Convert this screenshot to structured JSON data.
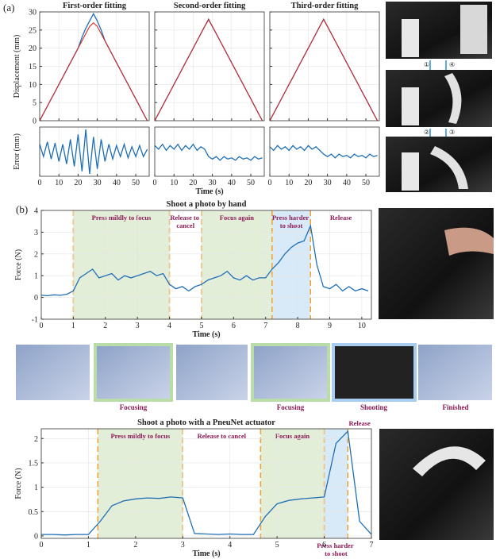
{
  "panel_labels": [
    "(a)",
    "(b)"
  ],
  "photo_steps": [
    "①",
    "④",
    "②",
    "③"
  ],
  "screen_captions": [
    "Focusing",
    "Focusing",
    "Shooting",
    "Finished"
  ],
  "chart_data": [
    {
      "type": "line",
      "title": "First-order fitting",
      "ylabel": "Displacement (mm)",
      "grid": true,
      "x": [
        0,
        2,
        4,
        6,
        8,
        10,
        12,
        14,
        16,
        18,
        20,
        22,
        24,
        26,
        28,
        30,
        32,
        34,
        36,
        38,
        40,
        42,
        44,
        46,
        48,
        50,
        52,
        54,
        56
      ],
      "series": [
        {
          "color": "#1f6fb5",
          "values": [
            0,
            2,
            4,
            6,
            8,
            10,
            12,
            14,
            16,
            18,
            20,
            23,
            25.5,
            27.5,
            29.5,
            27.5,
            25,
            22,
            20,
            18,
            16,
            14,
            12,
            10,
            8,
            6,
            4,
            2,
            0
          ]
        },
        {
          "color": "#d62728",
          "values": [
            0,
            2,
            4,
            6,
            8,
            10,
            12,
            14,
            16,
            18,
            20,
            22,
            24,
            26,
            27,
            26,
            24,
            22,
            20,
            18,
            16,
            14,
            12,
            10,
            8,
            6,
            4,
            2,
            0
          ]
        }
      ],
      "xlim": [
        0,
        57
      ],
      "ylim": [
        0,
        30
      ],
      "xticks": [
        0,
        10,
        20,
        30,
        40,
        50
      ],
      "yticks": [
        0,
        5,
        10,
        15,
        20,
        25,
        30
      ]
    },
    {
      "type": "line",
      "title": "Second-order fitting",
      "grid": true,
      "x": [
        0,
        2,
        4,
        6,
        8,
        10,
        12,
        14,
        16,
        18,
        20,
        22,
        24,
        26,
        28,
        30,
        32,
        34,
        36,
        38,
        40,
        42,
        44,
        46,
        48,
        50,
        52,
        54,
        56
      ],
      "series": [
        {
          "color": "#1f6fb5",
          "values": [
            0,
            2,
            4,
            6,
            8,
            10,
            12,
            14,
            16,
            18,
            20,
            22,
            24,
            26,
            28,
            26,
            24,
            22,
            20,
            18,
            16,
            14,
            12,
            10,
            8,
            6,
            4,
            2,
            0
          ]
        },
        {
          "color": "#d62728",
          "values": [
            0,
            2,
            4,
            6,
            8,
            10,
            12,
            14,
            16,
            18,
            20,
            22,
            24,
            26,
            27.8,
            26,
            24,
            22,
            20,
            18,
            16,
            14,
            12,
            10,
            8,
            6,
            4,
            2,
            0
          ]
        }
      ],
      "xlim": [
        0,
        57
      ],
      "ylim": [
        0,
        30
      ],
      "xticks": [
        0,
        10,
        20,
        30,
        40,
        50
      ],
      "yticks": [
        0,
        5,
        10,
        15,
        20,
        25,
        30
      ]
    },
    {
      "type": "line",
      "title": "Third-order fitting",
      "grid": true,
      "x": [
        0,
        2,
        4,
        6,
        8,
        10,
        12,
        14,
        16,
        18,
        20,
        22,
        24,
        26,
        28,
        30,
        32,
        34,
        36,
        38,
        40,
        42,
        44,
        46,
        48,
        50,
        52,
        54,
        56
      ],
      "series": [
        {
          "color": "#1f6fb5",
          "values": [
            0,
            2,
            4,
            6,
            8,
            10,
            12,
            14,
            16,
            18,
            20,
            22,
            24,
            26,
            28,
            26,
            24,
            22,
            20,
            18,
            16,
            14,
            12,
            10,
            8,
            6,
            4,
            2,
            0
          ]
        },
        {
          "color": "#d62728",
          "values": [
            0,
            2,
            4,
            6,
            8,
            10,
            12,
            14,
            16,
            18,
            20,
            22,
            24,
            26,
            27.9,
            26,
            24,
            22,
            20,
            18,
            16,
            14,
            12,
            10,
            8,
            6,
            4,
            2,
            0
          ]
        }
      ],
      "xlim": [
        0,
        57
      ],
      "ylim": [
        0,
        30
      ],
      "xticks": [
        0,
        10,
        20,
        30,
        40,
        50
      ],
      "yticks": [
        0,
        5,
        10,
        15,
        20,
        25,
        30
      ]
    },
    {
      "type": "line",
      "ylabel": "Error (mm)",
      "grid": true,
      "x": [
        0,
        2,
        4,
        6,
        8,
        10,
        12,
        14,
        16,
        18,
        20,
        22,
        24,
        26,
        28,
        30,
        32,
        34,
        36,
        38,
        40,
        42,
        44,
        46,
        48,
        50,
        52,
        54,
        56
      ],
      "series": [
        {
          "color": "#1f6fb5",
          "values": [
            0.3,
            -0.2,
            0.4,
            -0.3,
            0.35,
            -0.4,
            0.3,
            -0.5,
            0.5,
            -0.6,
            0.7,
            -0.8,
            0.9,
            -0.9,
            0.6,
            -0.7,
            0.5,
            -0.4,
            0.3,
            -0.3,
            0.25,
            -0.2,
            0.3,
            -0.25,
            0.2,
            -0.2,
            0.25,
            -0.2,
            0.1
          ]
        }
      ],
      "xlim": [
        0,
        57
      ],
      "ylim": [
        -1,
        1
      ],
      "xticks": [
        0,
        10,
        20,
        30,
        40,
        50
      ]
    },
    {
      "type": "line",
      "xlabel": "Time (s)",
      "grid": true,
      "x": [
        0,
        2,
        4,
        6,
        8,
        10,
        12,
        14,
        16,
        18,
        20,
        22,
        24,
        26,
        28,
        30,
        32,
        34,
        36,
        38,
        40,
        42,
        44,
        46,
        48,
        50,
        52,
        54,
        56
      ],
      "series": [
        {
          "color": "#1f6fb5",
          "values": [
            0.25,
            0.1,
            0.3,
            0.05,
            0.25,
            0.1,
            0.3,
            0.05,
            0.25,
            0.1,
            0.3,
            0.05,
            0.2,
            0.1,
            -0.2,
            -0.3,
            -0.2,
            -0.35,
            -0.2,
            -0.3,
            -0.25,
            -0.35,
            -0.2,
            -0.3,
            -0.25,
            -0.35,
            -0.2,
            -0.3,
            -0.25
          ]
        }
      ],
      "xlim": [
        0,
        57
      ],
      "ylim": [
        -1,
        1
      ],
      "xticks": [
        0,
        10,
        20,
        30,
        40,
        50
      ]
    },
    {
      "type": "line",
      "grid": true,
      "x": [
        0,
        2,
        4,
        6,
        8,
        10,
        12,
        14,
        16,
        18,
        20,
        22,
        24,
        26,
        28,
        30,
        32,
        34,
        36,
        38,
        40,
        42,
        44,
        46,
        48,
        50,
        52,
        54,
        56
      ],
      "series": [
        {
          "color": "#1f6fb5",
          "values": [
            0.2,
            0.05,
            0.25,
            0.1,
            0.2,
            0.05,
            0.25,
            0.1,
            0.2,
            0.05,
            0.25,
            0.1,
            0.2,
            0.05,
            -0.1,
            -0.2,
            -0.1,
            -0.25,
            -0.1,
            -0.2,
            -0.15,
            -0.25,
            -0.1,
            -0.2,
            -0.15,
            -0.25,
            -0.1,
            -0.2,
            -0.15
          ]
        }
      ],
      "xlim": [
        0,
        57
      ],
      "ylim": [
        -1,
        1
      ],
      "xticks": [
        0,
        10,
        20,
        30,
        40,
        50
      ]
    },
    {
      "type": "line",
      "title": "Shoot a photo by hand",
      "xlabel": "Time (s)",
      "ylabel": "Force (N)",
      "grid": true,
      "phase_line_color": "#f0a030",
      "label_color": "#8b1a55",
      "phases": [
        {
          "label": "Press mildly to focus",
          "start": 1,
          "end": 4,
          "color": "#e3eed9"
        },
        {
          "label": "Release to cancel",
          "start": 4,
          "end": 5,
          "color": null
        },
        {
          "label": "Focus again",
          "start": 5,
          "end": 7.2,
          "color": "#e3eed9"
        },
        {
          "label": "Press harder to shoot",
          "start": 7.2,
          "end": 8.4,
          "color": "#d8e9f7"
        },
        {
          "label": "Release",
          "start": 8.4,
          "end": 10.3,
          "color": null
        }
      ],
      "x": [
        0,
        0.2,
        0.4,
        0.6,
        0.8,
        1,
        1.2,
        1.4,
        1.6,
        1.8,
        2,
        2.2,
        2.4,
        2.6,
        2.8,
        3,
        3.2,
        3.4,
        3.6,
        3.8,
        4,
        4.2,
        4.4,
        4.6,
        4.8,
        5,
        5.2,
        5.4,
        5.6,
        5.8,
        6,
        6.2,
        6.4,
        6.6,
        6.8,
        7,
        7.2,
        7.4,
        7.6,
        7.8,
        8,
        8.2,
        8.4,
        8.6,
        8.8,
        9,
        9.2,
        9.4,
        9.6,
        9.8,
        10,
        10.2
      ],
      "series": [
        {
          "color": "#1f6fb5",
          "values": [
            0.1,
            0.08,
            0.12,
            0.1,
            0.15,
            0.3,
            0.9,
            1.1,
            1.3,
            0.9,
            1.0,
            1.1,
            0.8,
            1.0,
            0.9,
            1.0,
            1.1,
            1.2,
            1.0,
            1.1,
            0.6,
            0.4,
            0.5,
            0.3,
            0.5,
            0.6,
            0.8,
            0.9,
            1.0,
            1.2,
            0.9,
            0.8,
            1.0,
            0.8,
            0.9,
            0.9,
            1.3,
            1.6,
            2.0,
            2.3,
            2.5,
            2.6,
            3.3,
            1.5,
            0.5,
            0.4,
            0.6,
            0.3,
            0.5,
            0.3,
            0.4,
            0.3
          ]
        }
      ],
      "xlim": [
        0,
        10.3
      ],
      "ylim": [
        -1,
        4
      ],
      "xticks": [
        0,
        1,
        2,
        3,
        4,
        5,
        6,
        7,
        8,
        9,
        10
      ],
      "yticks": [
        -1,
        0,
        1,
        2,
        3,
        4
      ]
    },
    {
      "type": "line",
      "title": "Shoot a photo with a PneuNet actuator",
      "xlabel": "Time (s)",
      "ylabel": "Force (N)",
      "grid": true,
      "phase_line_color": "#f0a030",
      "label_color": "#8b1a55",
      "phases": [
        {
          "label": "Press mildly to focus",
          "start": 1.2,
          "end": 3,
          "color": "#e3eed9"
        },
        {
          "label": "Release to cancel",
          "start": 3,
          "end": 4.65,
          "color": null
        },
        {
          "label": "Focus again",
          "start": 4.65,
          "end": 6,
          "color": "#e3eed9"
        },
        {
          "label": "Press harder to shoot",
          "start": 6,
          "end": 6.5,
          "color": "#d8e9f7"
        },
        {
          "label": "Release",
          "start": 6.5,
          "end": 7,
          "color": null
        }
      ],
      "x": [
        0,
        0.25,
        0.5,
        0.75,
        1,
        1.25,
        1.5,
        1.75,
        2,
        2.25,
        2.5,
        2.75,
        3,
        3.25,
        3.5,
        3.75,
        4,
        4.25,
        4.5,
        4.75,
        5,
        5.25,
        5.5,
        5.75,
        6,
        6.25,
        6.5,
        6.75,
        7
      ],
      "series": [
        {
          "color": "#1f6fb5",
          "values": [
            0.03,
            0.03,
            0.02,
            0.03,
            0.03,
            0.3,
            0.62,
            0.72,
            0.76,
            0.78,
            0.77,
            0.8,
            0.78,
            0.05,
            0.04,
            0.03,
            0.04,
            0.03,
            0.03,
            0.4,
            0.66,
            0.73,
            0.76,
            0.78,
            0.8,
            1.9,
            2.15,
            0.3,
            0.03
          ]
        }
      ],
      "xlim": [
        0,
        7
      ],
      "ylim": [
        -0.05,
        2.2
      ],
      "xticks": [
        0,
        1,
        2,
        3,
        4,
        5,
        6,
        7
      ],
      "yticks": [
        0,
        0.5,
        1,
        1.5,
        2
      ]
    }
  ]
}
